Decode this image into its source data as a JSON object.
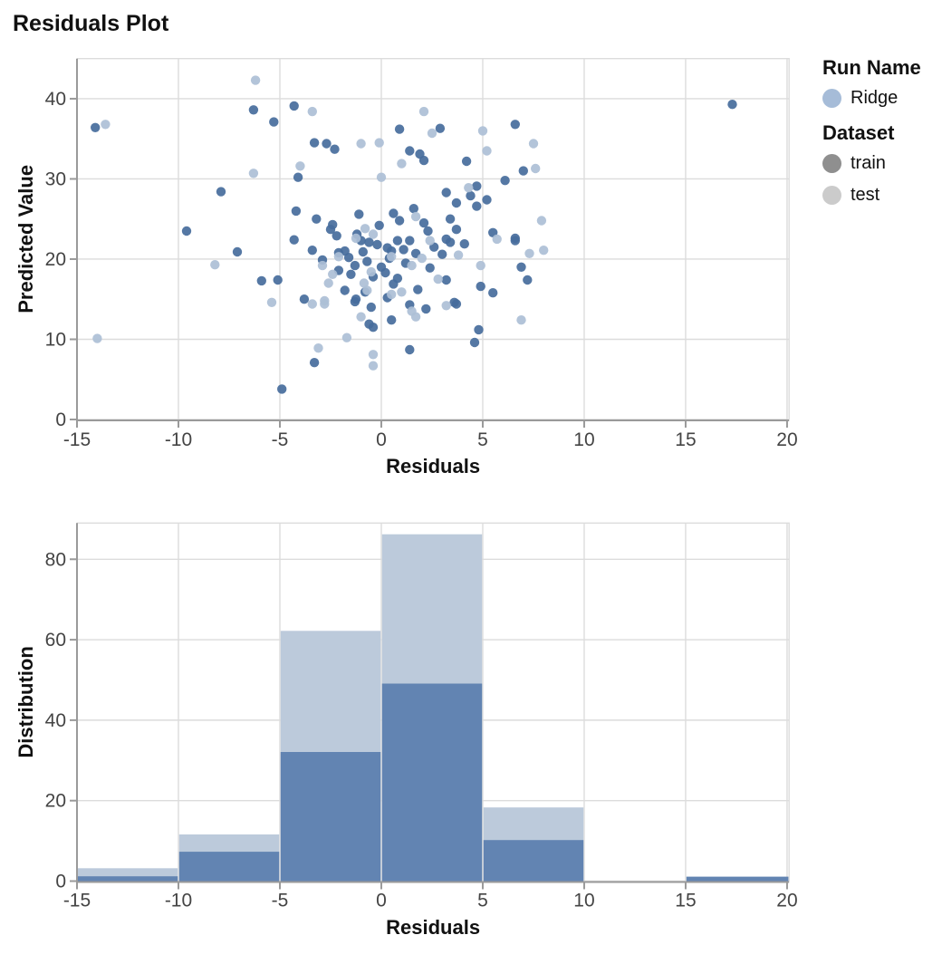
{
  "title": "Residuals Plot",
  "legend": {
    "run_name_title": "Run Name",
    "runs": [
      {
        "label": "Ridge",
        "color": "#a6bcd8"
      }
    ],
    "dataset_title": "Dataset",
    "datasets": [
      {
        "label": "train",
        "color": "#8f8f8f"
      },
      {
        "label": "test",
        "color": "#cbcbcb"
      }
    ]
  },
  "style": {
    "grid_color": "#dcdcdc",
    "axis_color": "#9a9a9a",
    "tick_label_color": "#444444",
    "title_color": "#111111"
  },
  "chart_data": [
    {
      "type": "scatter",
      "xlabel": "Residuals",
      "ylabel": "Predicted Value",
      "xlim": [
        -15,
        20.1
      ],
      "ylim": [
        0,
        45
      ],
      "xticks": [
        -15,
        -10,
        -5,
        0,
        5,
        10,
        15,
        20
      ],
      "yticks": [
        0,
        10,
        20,
        30,
        40
      ],
      "grid": true,
      "point_radius": 5.2,
      "series": [
        {
          "name": "train",
          "color": "#466c9c",
          "opacity": 0.92,
          "points": [
            [
              -14.1,
              36.4
            ],
            [
              -9.6,
              23.5
            ],
            [
              -7.9,
              28.4
            ],
            [
              -7.1,
              20.9
            ],
            [
              -6.3,
              38.6
            ],
            [
              -5.9,
              17.3
            ],
            [
              -5.3,
              37.1
            ],
            [
              -5.1,
              17.4
            ],
            [
              -4.9,
              3.8
            ],
            [
              -4.3,
              39.1
            ],
            [
              -4.3,
              22.4
            ],
            [
              -4.2,
              26.0
            ],
            [
              -4.1,
              30.2
            ],
            [
              -3.8,
              15.0
            ],
            [
              -3.4,
              21.1
            ],
            [
              -3.3,
              34.5
            ],
            [
              -3.3,
              7.1
            ],
            [
              -3.2,
              25.0
            ],
            [
              -2.9,
              19.9
            ],
            [
              -2.7,
              34.4
            ],
            [
              -2.5,
              23.7
            ],
            [
              -2.4,
              24.3
            ],
            [
              -2.3,
              33.7
            ],
            [
              -2.2,
              22.9
            ],
            [
              -2.1,
              20.8
            ],
            [
              -2.1,
              18.6
            ],
            [
              -1.8,
              21.0
            ],
            [
              -1.8,
              16.1
            ],
            [
              -1.6,
              20.2
            ],
            [
              -1.5,
              18.1
            ],
            [
              -1.3,
              19.2
            ],
            [
              -1.3,
              14.7
            ],
            [
              -1.25,
              15.0
            ],
            [
              -1.2,
              23.1
            ],
            [
              -1.1,
              25.6
            ],
            [
              -1.0,
              22.3
            ],
            [
              -0.9,
              20.9
            ],
            [
              -0.8,
              15.9
            ],
            [
              -0.7,
              19.7
            ],
            [
              -0.6,
              22.1
            ],
            [
              -0.6,
              11.9
            ],
            [
              -0.5,
              14.0
            ],
            [
              -0.4,
              17.8
            ],
            [
              -0.4,
              11.5
            ],
            [
              -0.2,
              21.8
            ],
            [
              -0.1,
              24.2
            ],
            [
              0.0,
              19.0
            ],
            [
              0.2,
              18.3
            ],
            [
              0.3,
              21.4
            ],
            [
              0.3,
              15.2
            ],
            [
              0.4,
              20.1
            ],
            [
              0.5,
              12.4
            ],
            [
              0.5,
              21.0
            ],
            [
              0.6,
              25.7
            ],
            [
              0.6,
              16.9
            ],
            [
              0.8,
              22.3
            ],
            [
              0.8,
              17.6
            ],
            [
              0.9,
              36.2
            ],
            [
              0.9,
              24.8
            ],
            [
              1.1,
              21.2
            ],
            [
              1.2,
              19.5
            ],
            [
              1.4,
              33.5
            ],
            [
              1.4,
              22.3
            ],
            [
              1.4,
              14.3
            ],
            [
              1.4,
              8.7
            ],
            [
              1.6,
              26.3
            ],
            [
              1.7,
              20.7
            ],
            [
              1.8,
              16.2
            ],
            [
              1.9,
              33.1
            ],
            [
              2.1,
              32.3
            ],
            [
              2.1,
              24.5
            ],
            [
              2.2,
              13.8
            ],
            [
              2.3,
              23.5
            ],
            [
              2.4,
              18.9
            ],
            [
              2.6,
              21.5
            ],
            [
              2.9,
              36.3
            ],
            [
              3.0,
              20.6
            ],
            [
              3.2,
              28.3
            ],
            [
              3.2,
              22.5
            ],
            [
              3.2,
              17.4
            ],
            [
              3.4,
              25.0
            ],
            [
              3.4,
              22.1
            ],
            [
              3.6,
              14.6
            ],
            [
              3.7,
              27.0
            ],
            [
              3.7,
              23.7
            ],
            [
              3.7,
              14.4
            ],
            [
              4.1,
              21.9
            ],
            [
              4.2,
              32.2
            ],
            [
              4.4,
              27.9
            ],
            [
              4.6,
              9.6
            ],
            [
              4.7,
              29.1
            ],
            [
              4.7,
              26.6
            ],
            [
              4.8,
              11.2
            ],
            [
              4.9,
              16.6
            ],
            [
              5.2,
              27.4
            ],
            [
              5.5,
              23.3
            ],
            [
              5.5,
              15.8
            ],
            [
              6.1,
              29.8
            ],
            [
              6.6,
              36.8
            ],
            [
              6.6,
              22.6
            ],
            [
              6.6,
              22.3
            ],
            [
              6.9,
              19.0
            ],
            [
              7.0,
              31.0
            ],
            [
              7.2,
              17.4
            ],
            [
              17.3,
              39.3
            ]
          ]
        },
        {
          "name": "test",
          "color": "#acbfd6",
          "opacity": 0.92,
          "points": [
            [
              -14.0,
              10.1
            ],
            [
              -13.6,
              36.8
            ],
            [
              -8.2,
              19.3
            ],
            [
              -6.3,
              30.7
            ],
            [
              -6.2,
              42.3
            ],
            [
              -5.4,
              14.6
            ],
            [
              -4.0,
              31.6
            ],
            [
              -3.4,
              38.4
            ],
            [
              -3.4,
              14.4
            ],
            [
              -3.1,
              8.9
            ],
            [
              -2.9,
              19.2
            ],
            [
              -2.8,
              14.8
            ],
            [
              -2.8,
              14.4
            ],
            [
              -2.6,
              17.0
            ],
            [
              -2.4,
              18.1
            ],
            [
              -2.1,
              20.3
            ],
            [
              -1.7,
              10.2
            ],
            [
              -1.25,
              22.6
            ],
            [
              -1.0,
              34.4
            ],
            [
              -1.0,
              12.8
            ],
            [
              -0.85,
              17.0
            ],
            [
              -0.8,
              23.8
            ],
            [
              -0.7,
              16.1
            ],
            [
              -0.5,
              18.4
            ],
            [
              -0.4,
              23.1
            ],
            [
              -0.4,
              8.1
            ],
            [
              -0.4,
              6.7
            ],
            [
              -0.1,
              34.5
            ],
            [
              0.0,
              30.2
            ],
            [
              0.5,
              20.3
            ],
            [
              0.5,
              15.6
            ],
            [
              1.0,
              31.9
            ],
            [
              1.0,
              15.9
            ],
            [
              1.5,
              19.2
            ],
            [
              1.5,
              13.5
            ],
            [
              1.7,
              25.3
            ],
            [
              1.7,
              12.8
            ],
            [
              2.0,
              20.1
            ],
            [
              2.1,
              38.4
            ],
            [
              2.4,
              22.3
            ],
            [
              2.5,
              35.7
            ],
            [
              2.8,
              17.5
            ],
            [
              3.2,
              14.2
            ],
            [
              3.8,
              20.5
            ],
            [
              4.3,
              28.9
            ],
            [
              4.9,
              19.2
            ],
            [
              5.0,
              36.0
            ],
            [
              5.2,
              33.5
            ],
            [
              5.7,
              22.5
            ],
            [
              6.9,
              12.4
            ],
            [
              7.3,
              20.7
            ],
            [
              7.5,
              34.4
            ],
            [
              7.6,
              31.3
            ],
            [
              7.9,
              24.8
            ],
            [
              8.0,
              21.1
            ]
          ]
        }
      ]
    },
    {
      "type": "histogram",
      "xlabel": "Residuals",
      "ylabel": "Distribution",
      "xlim": [
        -15,
        20.1
      ],
      "ylim": [
        0,
        89
      ],
      "xticks": [
        -15,
        -10,
        -5,
        0,
        5,
        10,
        15,
        20
      ],
      "yticks": [
        0,
        20,
        40,
        60,
        80
      ],
      "grid": true,
      "bin_edges": [
        -15,
        -10,
        -5,
        0,
        5,
        10,
        15,
        20.1
      ],
      "series": [
        {
          "name": "test",
          "color": "#bccadb",
          "values": [
            3.2,
            11.6,
            62.2,
            86.2,
            18.3,
            0,
            0
          ]
        },
        {
          "name": "train",
          "color": "#6284b2",
          "values": [
            1.2,
            7.3,
            32.1,
            49.1,
            10.2,
            0,
            1.1
          ]
        }
      ]
    }
  ]
}
